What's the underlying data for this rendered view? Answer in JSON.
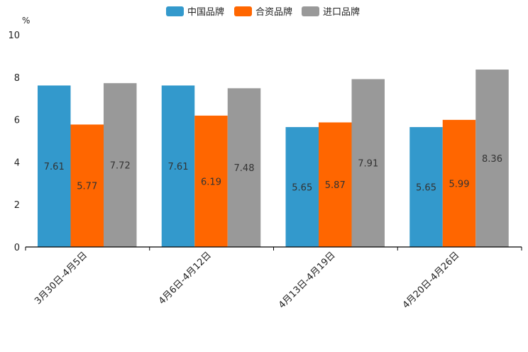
{
  "chart_data": {
    "type": "bar",
    "title": "",
    "ylabel": "%",
    "xlabel": "",
    "ylim": [
      0,
      10
    ],
    "yticks": [
      0,
      2,
      4,
      6,
      8,
      10
    ],
    "categories": [
      "3月30日-4月5日",
      "4月6日-4月12日",
      "4月13日-4月19日",
      "4月20日-4月26日"
    ],
    "series": [
      {
        "name": "中国品牌",
        "color": "#3399cc",
        "values": [
          7.61,
          7.61,
          5.65,
          5.65
        ]
      },
      {
        "name": "合资品牌",
        "color": "#ff6600",
        "values": [
          5.77,
          6.19,
          5.87,
          5.99
        ]
      },
      {
        "name": "进口品牌",
        "color": "#999999",
        "values": [
          7.72,
          7.48,
          7.91,
          8.36
        ]
      }
    ],
    "legend_position": "top-center"
  }
}
